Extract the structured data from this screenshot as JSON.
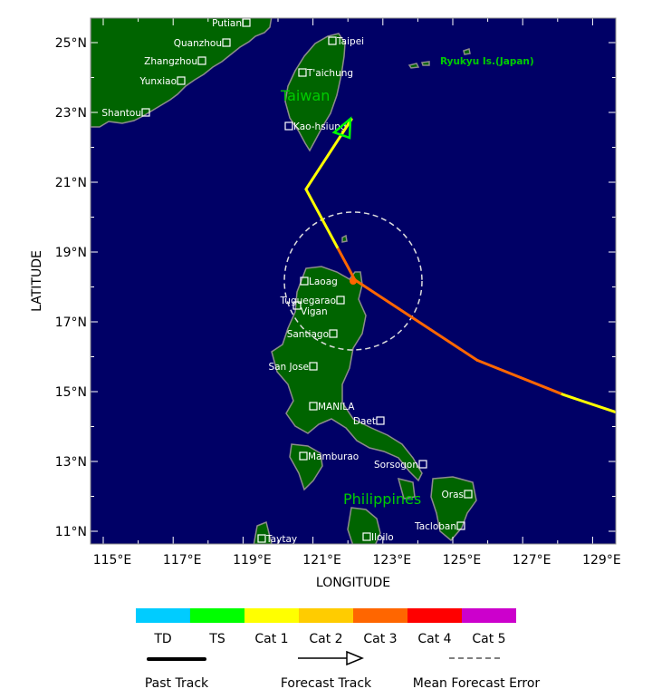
{
  "map": {
    "xlabel": "LONGITUDE",
    "ylabel": "LATITUDE",
    "lon_ticks": [
      "115°E",
      "117°E",
      "119°E",
      "121°E",
      "123°E",
      "125°E",
      "127°E",
      "129°E"
    ],
    "lat_ticks": [
      "25°N",
      "23°N",
      "21°N",
      "19°N",
      "17°N",
      "15°N",
      "13°N",
      "11°N"
    ],
    "region_labels": {
      "taiwan": "Taiwan",
      "philippines": "Philippines",
      "ryukyu": "Ryukyu Is.(Japan)"
    },
    "cities": [
      "Putian",
      "Quanzhou",
      "Zhangzhou",
      "Yunxiao",
      "Shantou",
      "Taipei",
      "T'aichung",
      "Kao-hsiung",
      "Laoag",
      "Tuguegarao",
      "Vigan",
      "Santiago",
      "San Jose",
      "MANILA",
      "Daet",
      "Mamburao",
      "Sorsogon",
      "Oras",
      "Tacloban",
      "Iloilo",
      "Taytay"
    ],
    "colors": {
      "ocean": "#000066",
      "land": "#006400",
      "coast": "#8c8c8c",
      "region_label": "#00cc00"
    }
  },
  "track": {
    "points_lonlat": [
      [
        129.7,
        14.4
      ],
      [
        128.2,
        14.9
      ],
      [
        125.7,
        15.9
      ],
      [
        122.2,
        18.2
      ],
      [
        120.8,
        20.8
      ],
      [
        122.1,
        22.8
      ]
    ],
    "current_position": [
      122.2,
      18.2
    ],
    "mean_forecast_error_radius_deg": 2
  },
  "legend": {
    "categories": [
      {
        "label": "TD",
        "color": "#00ccff"
      },
      {
        "label": "TS",
        "color": "#00ff00"
      },
      {
        "label": "Cat 1",
        "color": "#ffff00"
      },
      {
        "label": "Cat 2",
        "color": "#ffcc00"
      },
      {
        "label": "Cat 3",
        "color": "#ff6600"
      },
      {
        "label": "Cat 4",
        "color": "#ff0000"
      },
      {
        "label": "Cat 5",
        "color": "#cc00cc"
      }
    ],
    "past_track": "Past Track",
    "forecast_track": "Forecast Track",
    "mean_error": "Mean Forecast Error"
  }
}
